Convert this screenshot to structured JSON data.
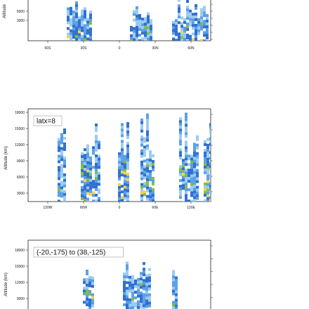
{
  "chart_data": [
    {
      "type": "heatmap",
      "ylabel": "Altitude",
      "y_ticks": [
        "6000",
        "3000"
      ],
      "x_ticks": [
        "60S",
        "30S",
        "0",
        "30N",
        "60N"
      ],
      "annotation": "",
      "colors": [
        "#2f6fd0",
        "#5aa0e6",
        "#9ccbf2",
        "#f2d34a",
        "#7fbf3f"
      ],
      "grid": false
    },
    {
      "type": "heatmap",
      "ylabel": "Altitude (km)",
      "y_ticks": [
        "18000",
        "15000",
        "12000",
        "9000",
        "6000",
        "3000"
      ],
      "x_ticks": [
        "120W",
        "60W",
        "0",
        "60E",
        "120E"
      ],
      "annotation": "latx=8",
      "colors": [
        "#2f6fd0",
        "#5aa0e6",
        "#9ccbf2",
        "#f2d34a",
        "#7fbf3f"
      ],
      "grid": false
    },
    {
      "type": "heatmap",
      "ylabel": "Altitude (km)",
      "y_ticks": [
        "18000",
        "15000",
        "12000",
        "9000",
        "6000"
      ],
      "x_ticks": [],
      "annotation": "(-20,-175) to (38,-125)",
      "colors": [
        "#2f6fd0",
        "#5aa0e6",
        "#9ccbf2",
        "#f2d34a",
        "#7fbf3f"
      ],
      "grid": false
    }
  ]
}
